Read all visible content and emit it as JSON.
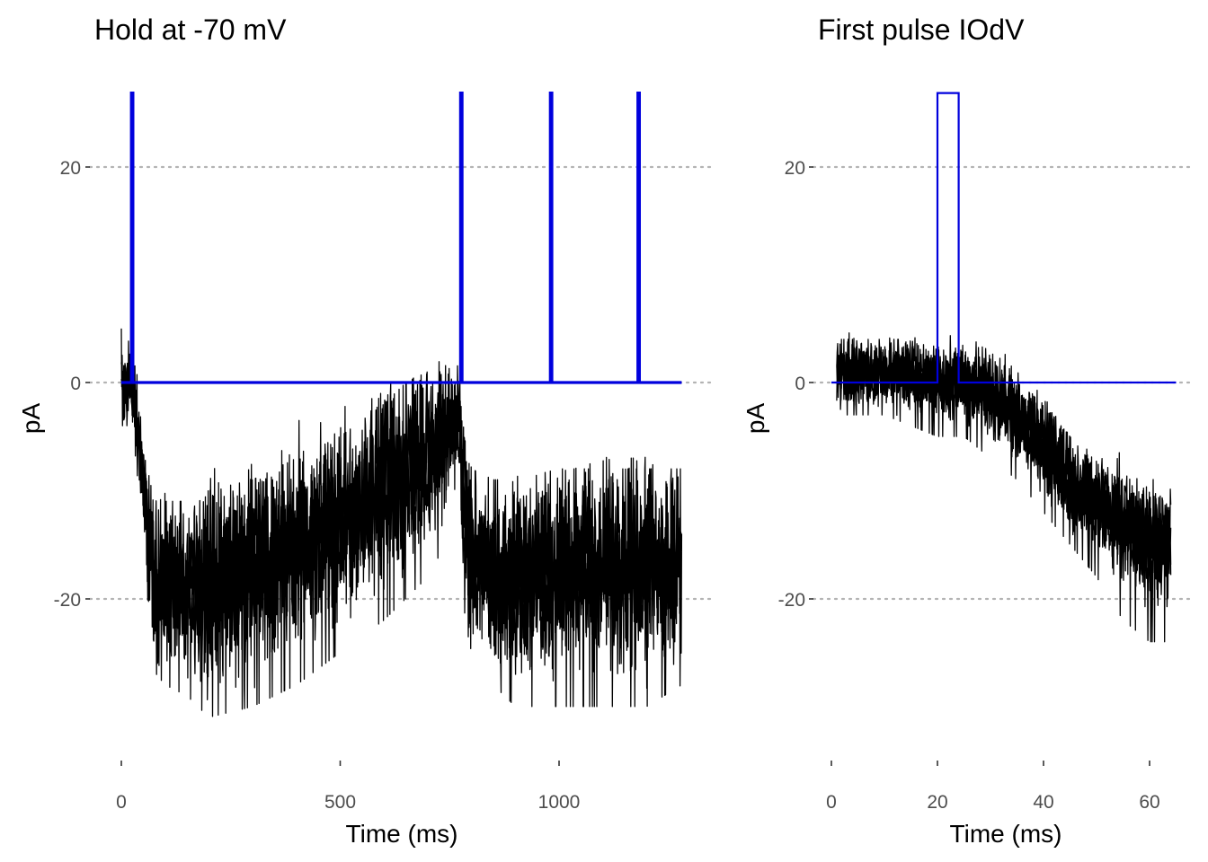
{
  "chart_data": [
    {
      "id": "left",
      "type": "line",
      "title": "Hold at -70 mV",
      "xlabel": "Time (ms)",
      "ylabel": "pA",
      "xlim": [
        0,
        1280
      ],
      "ylim": [
        -34,
        27
      ],
      "x_ticks": [
        0,
        500,
        1000
      ],
      "x_tick_labels": [
        "0",
        "500",
        "1000"
      ],
      "y_ticks": [
        -20,
        0,
        20
      ],
      "y_tick_labels": [
        "-20",
        "0",
        "20"
      ],
      "grid": "horizontal dotted",
      "legend": "none",
      "colors": {
        "current": "#000000",
        "stimulus": "#0000dd"
      },
      "stimulus": {
        "baseline": 0,
        "amplitude": 26.8,
        "pulse_starts": [
          23,
          775,
          980,
          1180
        ],
        "pulse_width": 3.5,
        "end": 1280
      },
      "current_envelope": {
        "x": [
          0,
          10,
          20,
          30,
          40,
          50,
          60,
          70,
          80,
          100,
          150,
          200,
          300,
          400,
          500,
          600,
          650,
          700,
          740,
          770,
          780,
          790,
          800,
          850,
          900,
          1000,
          1100,
          1200,
          1280
        ],
        "mean": [
          0,
          -0.5,
          0,
          -2,
          -6,
          -9,
          -14,
          -17,
          -19,
          -19,
          -19,
          -19,
          -17,
          -15,
          -13,
          -10,
          -8,
          -7,
          -5,
          -3,
          -10,
          -14,
          -16,
          -18,
          -18,
          -17,
          -17,
          -17,
          -17
        ],
        "upper": [
          5,
          4,
          5,
          3,
          -1,
          -4,
          -8,
          -10,
          -11,
          -11,
          -11,
          -10,
          -9,
          -7,
          -5,
          -2,
          0,
          1,
          1,
          2,
          -2,
          -6,
          -8,
          -9,
          -9,
          -8,
          -8,
          -8,
          -8
        ],
        "lower": [
          -4,
          -4,
          -4,
          -6,
          -10,
          -14,
          -20,
          -24,
          -27,
          -28,
          -29,
          -31,
          -30,
          -28,
          -25,
          -22,
          -20,
          -18,
          -15,
          -10,
          -20,
          -23,
          -25,
          -28,
          -30,
          -30,
          -30,
          -30,
          -28
        ]
      }
    },
    {
      "id": "right",
      "type": "line",
      "title": "First pulse IOdV",
      "xlabel": "Time (ms)",
      "ylabel": "pA",
      "xlim": [
        0,
        65
      ],
      "ylim": [
        -34,
        27
      ],
      "x_ticks": [
        0,
        20,
        40,
        60
      ],
      "x_tick_labels": [
        "0",
        "20",
        "40",
        "60"
      ],
      "y_ticks": [
        -20,
        0,
        20
      ],
      "y_tick_labels": [
        "-20",
        "0",
        "20"
      ],
      "grid": "horizontal dotted",
      "legend": "none",
      "colors": {
        "current": "#000000",
        "stimulus": "#0000dd"
      },
      "stimulus": {
        "baseline": 0,
        "amplitude": 26.8,
        "pulse_starts": [
          20
        ],
        "pulse_width": 4,
        "end": 65
      },
      "current_envelope": {
        "x": [
          1,
          5,
          10,
          15,
          20,
          25,
          30,
          35,
          40,
          45,
          50,
          55,
          60,
          64
        ],
        "mean": [
          1,
          1,
          1,
          1,
          0,
          0,
          -1,
          -3,
          -6,
          -9,
          -11,
          -13,
          -15,
          -15
        ],
        "upper": [
          4,
          4,
          4,
          4,
          3,
          3,
          2,
          0,
          -2,
          -5,
          -8,
          -9,
          -10,
          -11
        ],
        "lower": [
          -3,
          -3,
          -3,
          -4,
          -5,
          -5,
          -7,
          -9,
          -12,
          -15,
          -18,
          -22,
          -24,
          -24
        ]
      }
    }
  ]
}
